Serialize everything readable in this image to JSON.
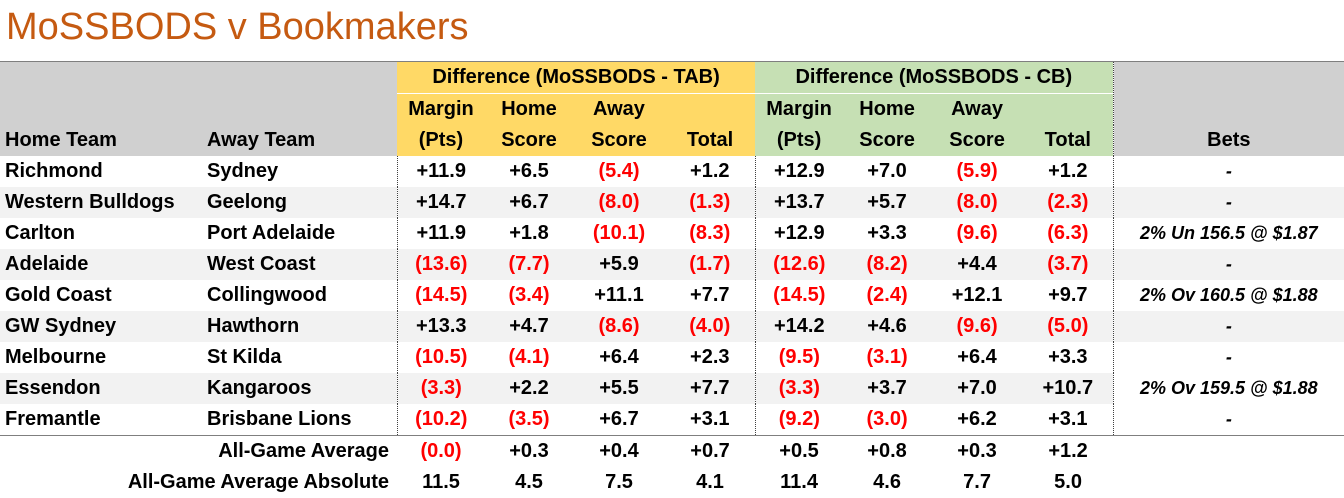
{
  "title": "MoSSBODS v Bookmakers",
  "colors": {
    "title": "#c55a11",
    "tab_header": "#ffd966",
    "cb_header": "#c6e0b4",
    "grey_header": "#d0d0d0",
    "negative": "#ff0000"
  },
  "header": {
    "group_tab": "Difference (MoSSBODS - TAB)",
    "group_cb": "Difference (MoSSBODS - CB)",
    "home_team": "Home Team",
    "away_team": "Away Team",
    "margin_line1": "Margin",
    "margin_line2": "(Pts)",
    "home_line1": "Home",
    "home_line2": "Score",
    "away_line1": "Away",
    "away_line2": "Score",
    "total": "Total",
    "bets": "Bets"
  },
  "rows": [
    {
      "home": "Richmond",
      "away": "Sydney",
      "tab": [
        "+11.9",
        "+6.5",
        "(5.4)",
        "+1.2"
      ],
      "cb": [
        "+12.9",
        "+7.0",
        "(5.9)",
        "+1.2"
      ],
      "bets": "-"
    },
    {
      "home": "Western Bulldogs",
      "away": "Geelong",
      "tab": [
        "+14.7",
        "+6.7",
        "(8.0)",
        "(1.3)"
      ],
      "cb": [
        "+13.7",
        "+5.7",
        "(8.0)",
        "(2.3)"
      ],
      "bets": "-"
    },
    {
      "home": "Carlton",
      "away": "Port Adelaide",
      "tab": [
        "+11.9",
        "+1.8",
        "(10.1)",
        "(8.3)"
      ],
      "cb": [
        "+12.9",
        "+3.3",
        "(9.6)",
        "(6.3)"
      ],
      "bets": "2% Un 156.5 @ $1.87"
    },
    {
      "home": "Adelaide",
      "away": "West Coast",
      "tab": [
        "(13.6)",
        "(7.7)",
        "+5.9",
        "(1.7)"
      ],
      "cb": [
        "(12.6)",
        "(8.2)",
        "+4.4",
        "(3.7)"
      ],
      "bets": "-"
    },
    {
      "home": "Gold Coast",
      "away": "Collingwood",
      "tab": [
        "(14.5)",
        "(3.4)",
        "+11.1",
        "+7.7"
      ],
      "cb": [
        "(14.5)",
        "(2.4)",
        "+12.1",
        "+9.7"
      ],
      "bets": "2% Ov 160.5 @ $1.88"
    },
    {
      "home": "GW Sydney",
      "away": "Hawthorn",
      "tab": [
        "+13.3",
        "+4.7",
        "(8.6)",
        "(4.0)"
      ],
      "cb": [
        "+14.2",
        "+4.6",
        "(9.6)",
        "(5.0)"
      ],
      "bets": "-"
    },
    {
      "home": "Melbourne",
      "away": "St Kilda",
      "tab": [
        "(10.5)",
        "(4.1)",
        "+6.4",
        "+2.3"
      ],
      "cb": [
        "(9.5)",
        "(3.1)",
        "+6.4",
        "+3.3"
      ],
      "bets": "-"
    },
    {
      "home": "Essendon",
      "away": "Kangaroos",
      "tab": [
        "(3.3)",
        "+2.2",
        "+5.5",
        "+7.7"
      ],
      "cb": [
        "(3.3)",
        "+3.7",
        "+7.0",
        "+10.7"
      ],
      "bets": "2% Ov 159.5 @ $1.88"
    },
    {
      "home": "Fremantle",
      "away": "Brisbane Lions",
      "tab": [
        "(10.2)",
        "(3.5)",
        "+6.7",
        "+3.1"
      ],
      "cb": [
        "(9.2)",
        "(3.0)",
        "+6.2",
        "+3.1"
      ],
      "bets": "-"
    }
  ],
  "summary": [
    {
      "label": "All-Game Average",
      "tab": [
        "(0.0)",
        "+0.3",
        "+0.4",
        "+0.7"
      ],
      "cb": [
        "+0.5",
        "+0.8",
        "+0.3",
        "+1.2"
      ]
    },
    {
      "label": "All-Game Average Absolute",
      "tab": [
        "11.5",
        "4.5",
        "7.5",
        "4.1"
      ],
      "cb": [
        "11.4",
        "4.6",
        "7.7",
        "5.0"
      ]
    }
  ]
}
